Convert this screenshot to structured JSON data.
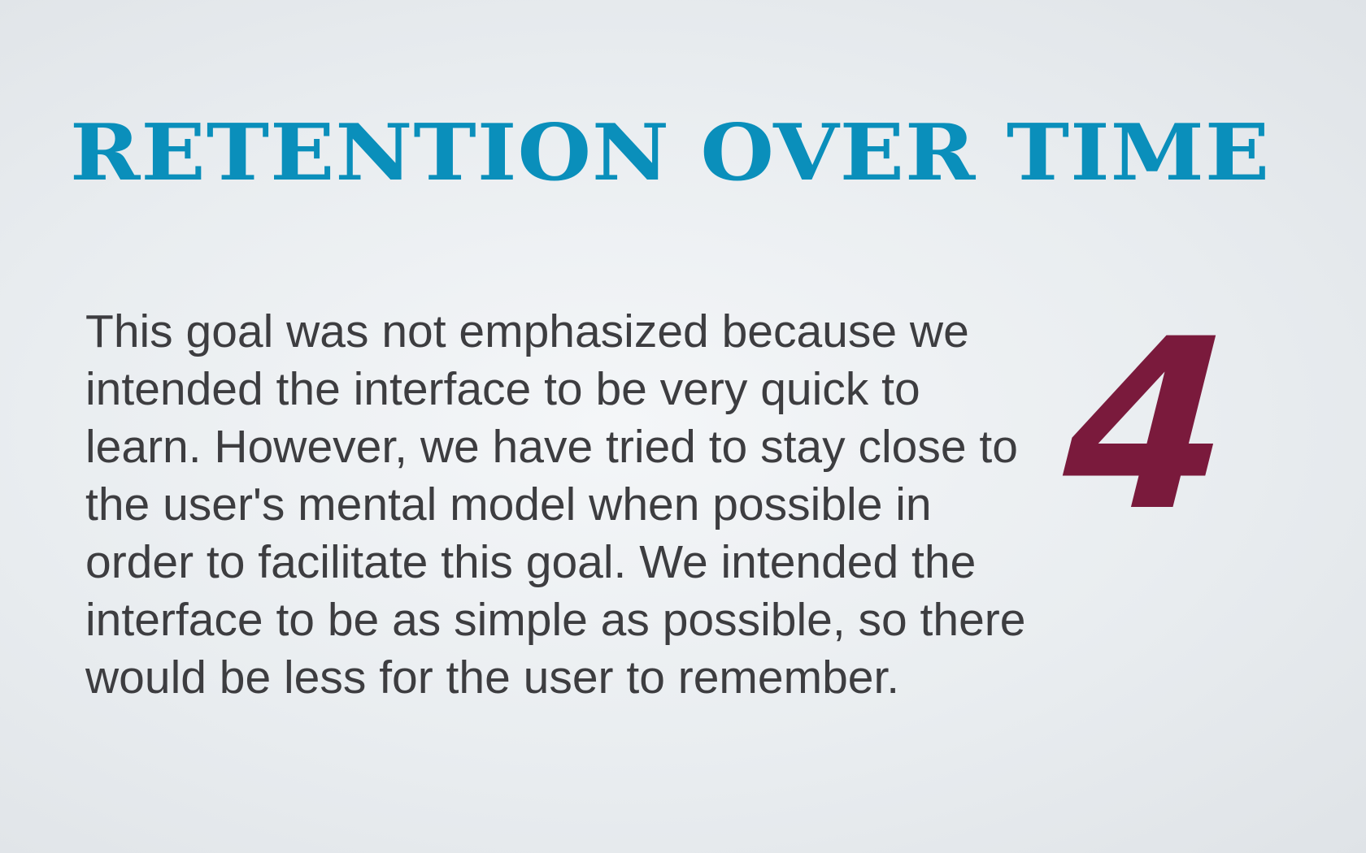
{
  "slide": {
    "title": "RETENTION OVER TIME",
    "body": "This goal was not emphasized because we intended the interface to be very quick to learn. However, we have tried to stay close to the user's mental model when possible in order to facilitate this goal. We intended the interface to be as simple as possible, so there would be less for the user to remember.",
    "number": "4"
  },
  "colors": {
    "title": "#0a8fbb",
    "body_text": "#3d3d40",
    "number": "#7a1a3c",
    "background": "#eceff2"
  }
}
